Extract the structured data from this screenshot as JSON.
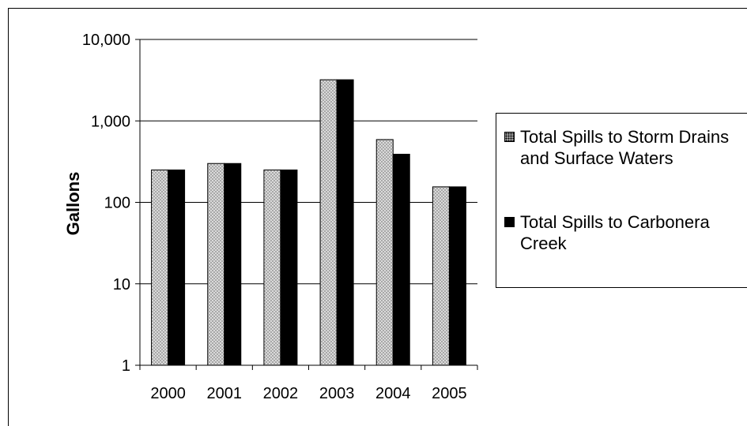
{
  "chart_data": {
    "type": "bar",
    "categories": [
      "2000",
      "2001",
      "2002",
      "2003",
      "2004",
      "2005"
    ],
    "series": [
      {
        "name": "Total Spills to Storm Drains and Surface Waters",
        "values": [
          250,
          300,
          250,
          3200,
          590,
          155
        ],
        "pattern": "hatched-gray"
      },
      {
        "name": "Total Spills to Carbonera Creek",
        "values": [
          250,
          300,
          250,
          3200,
          390,
          155
        ],
        "pattern": "solid-black"
      }
    ],
    "ylabel": "Gallons",
    "xlabel": "",
    "yscale": "log",
    "ylim": [
      1,
      10000
    ],
    "yticks": [
      {
        "value": 10000,
        "label": "10,000"
      },
      {
        "value": 1000,
        "label": "1,000"
      },
      {
        "value": 100,
        "label": "100"
      },
      {
        "value": 10,
        "label": "10"
      },
      {
        "value": 1,
        "label": "1"
      }
    ],
    "grid": true,
    "legend_position": "right",
    "colors": {
      "series1_fill": "#a0a0a0",
      "series2_fill": "#000000",
      "grid": "#000000"
    }
  },
  "legend": {
    "entry1": "Total Spills to Storm Drains and Surface Waters",
    "entry2": "Total Spills to Carbonera Creek"
  }
}
